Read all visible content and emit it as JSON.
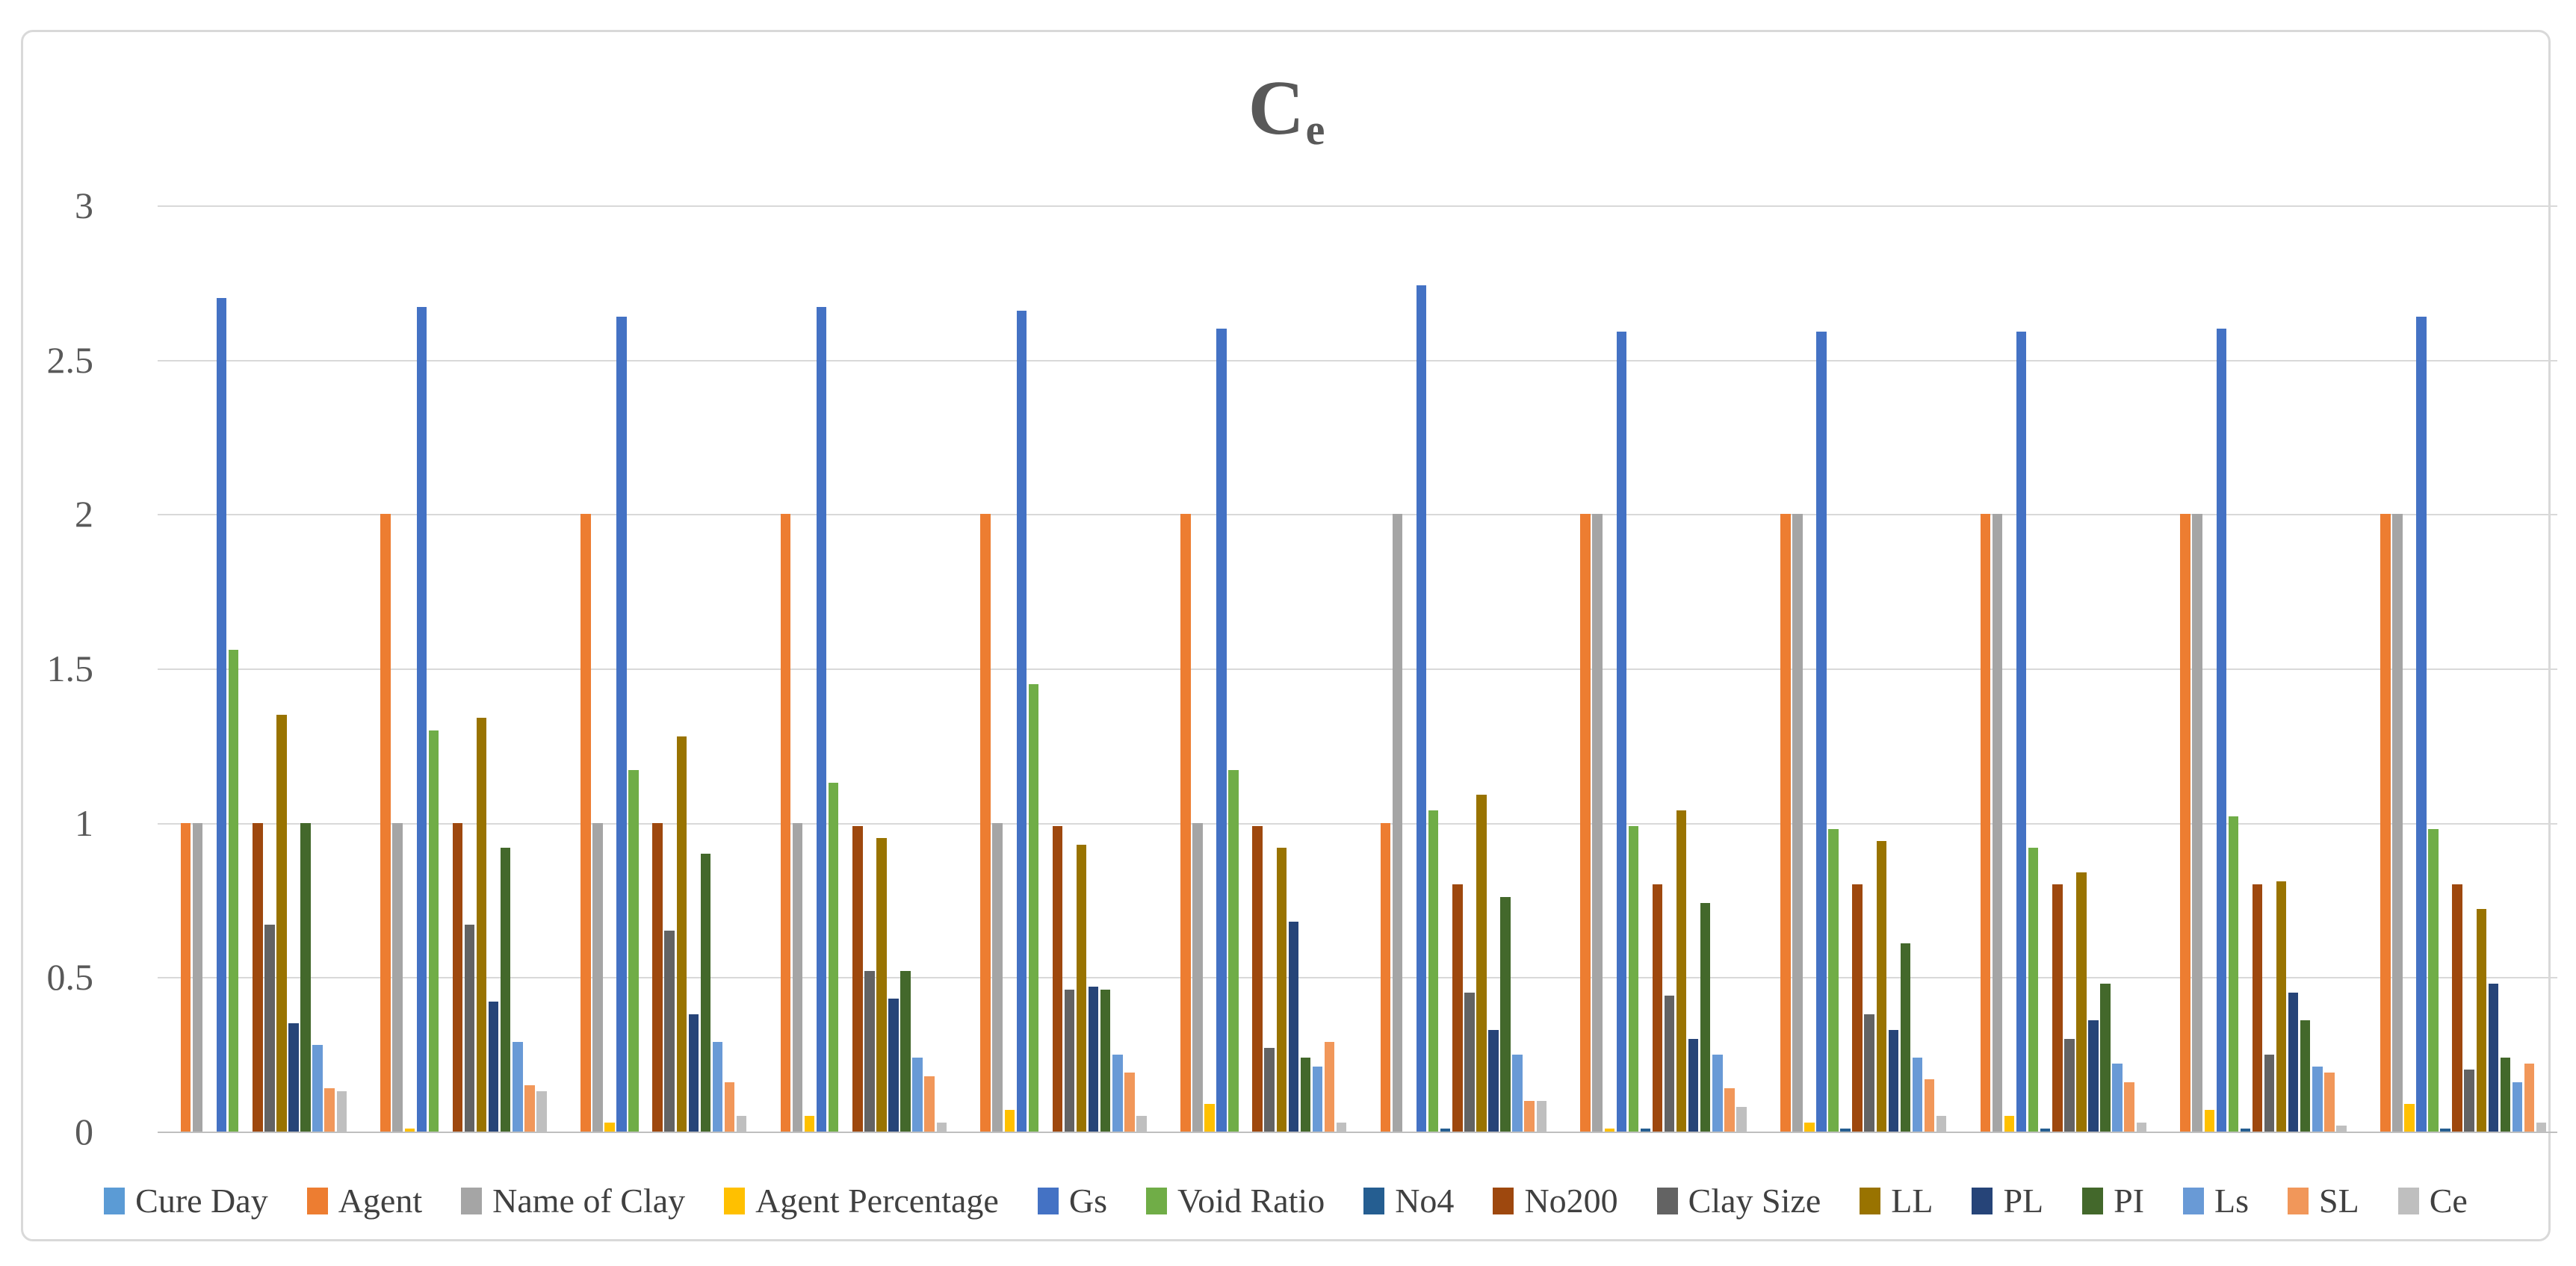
{
  "window": {
    "background": "#FFFFFF",
    "border_color": "#D9D9D9"
  },
  "title": {
    "main": "C",
    "subscript": "e",
    "color": "#595959"
  },
  "y_axis": {
    "ticks": [
      "3",
      "2.5",
      "2",
      "1.5",
      "1",
      "0.5",
      "0"
    ],
    "min": 0,
    "max": 3,
    "interval": 0.5,
    "label_color": "#595959"
  },
  "colors": {
    "gridline": "#D9D9D9",
    "axis_line": "#BFBFBF",
    "legend_text": "#404040"
  },
  "chart_data": {
    "type": "bar",
    "title": "Ce",
    "num_groups": 12,
    "categories": [
      "",
      "",
      "",
      "",
      "",
      "",
      "",
      "",
      "",
      "",
      "",
      ""
    ],
    "x_labels_visible": false,
    "ylim": [
      0,
      3
    ],
    "ytick_interval": 0.5,
    "grid": true,
    "legend_position": "bottom",
    "series": [
      {
        "name": "Cure Day",
        "color": "#5B9BD5",
        "values": [
          0,
          0,
          0,
          0,
          0,
          0,
          0,
          0,
          0,
          0,
          0,
          0
        ]
      },
      {
        "name": "Agent",
        "color": "#ED7D31",
        "values": [
          1,
          2,
          2,
          2,
          2,
          2,
          1,
          2,
          2,
          2,
          2,
          2
        ]
      },
      {
        "name": "Name of Clay",
        "color": "#A5A5A5",
        "values": [
          1,
          1,
          1,
          1,
          1,
          1,
          2,
          2,
          2,
          2,
          2,
          2
        ]
      },
      {
        "name": "Agent Percentage",
        "color": "#FFC000",
        "values": [
          0,
          0.01,
          0.03,
          0.05,
          0.07,
          0.09,
          0,
          0.01,
          0.03,
          0.05,
          0.07,
          0.09
        ]
      },
      {
        "name": "Gs",
        "color": "#4472C4",
        "values": [
          2.7,
          2.67,
          2.64,
          2.67,
          2.66,
          2.6,
          2.74,
          2.59,
          2.59,
          2.59,
          2.6,
          2.64
        ]
      },
      {
        "name": "Void Ratio",
        "color": "#70AD47",
        "values": [
          1.56,
          1.3,
          1.17,
          1.13,
          1.45,
          1.17,
          1.04,
          0.99,
          0.98,
          0.92,
          1.02,
          0.98
        ]
      },
      {
        "name": "No4",
        "color": "#255E91",
        "values": [
          0,
          0,
          0,
          0,
          0,
          0,
          0.01,
          0.01,
          0.01,
          0.01,
          0.01,
          0.01
        ]
      },
      {
        "name": "No200",
        "color": "#9E480E",
        "values": [
          1.0,
          1.0,
          1.0,
          0.99,
          0.99,
          0.99,
          0.8,
          0.8,
          0.8,
          0.8,
          0.8,
          0.8
        ]
      },
      {
        "name": "Clay Size",
        "color": "#636363",
        "values": [
          0.67,
          0.67,
          0.65,
          0.52,
          0.46,
          0.27,
          0.45,
          0.44,
          0.38,
          0.3,
          0.25,
          0.2
        ]
      },
      {
        "name": "LL",
        "color": "#997300",
        "values": [
          1.35,
          1.34,
          1.28,
          0.95,
          0.93,
          0.92,
          1.09,
          1.04,
          0.94,
          0.84,
          0.81,
          0.72
        ]
      },
      {
        "name": "PL",
        "color": "#264478",
        "values": [
          0.35,
          0.42,
          0.38,
          0.43,
          0.47,
          0.68,
          0.33,
          0.3,
          0.33,
          0.36,
          0.45,
          0.48
        ]
      },
      {
        "name": "PI",
        "color": "#43682B",
        "values": [
          1.0,
          0.92,
          0.9,
          0.52,
          0.46,
          0.24,
          0.76,
          0.74,
          0.61,
          0.48,
          0.36,
          0.24
        ]
      },
      {
        "name": "Ls",
        "color": "#699AD6",
        "values": [
          0.28,
          0.29,
          0.29,
          0.24,
          0.25,
          0.21,
          0.25,
          0.25,
          0.24,
          0.22,
          0.21,
          0.16
        ]
      },
      {
        "name": "SL",
        "color": "#F1975A",
        "values": [
          0.14,
          0.15,
          0.16,
          0.18,
          0.19,
          0.29,
          0.1,
          0.14,
          0.17,
          0.16,
          0.19,
          0.22
        ]
      },
      {
        "name": "Ce",
        "color": "#BFBFBF",
        "values": [
          0.13,
          0.13,
          0.05,
          0.03,
          0.05,
          0.03,
          0.1,
          0.08,
          0.05,
          0.03,
          0.02,
          0.03
        ]
      }
    ]
  }
}
